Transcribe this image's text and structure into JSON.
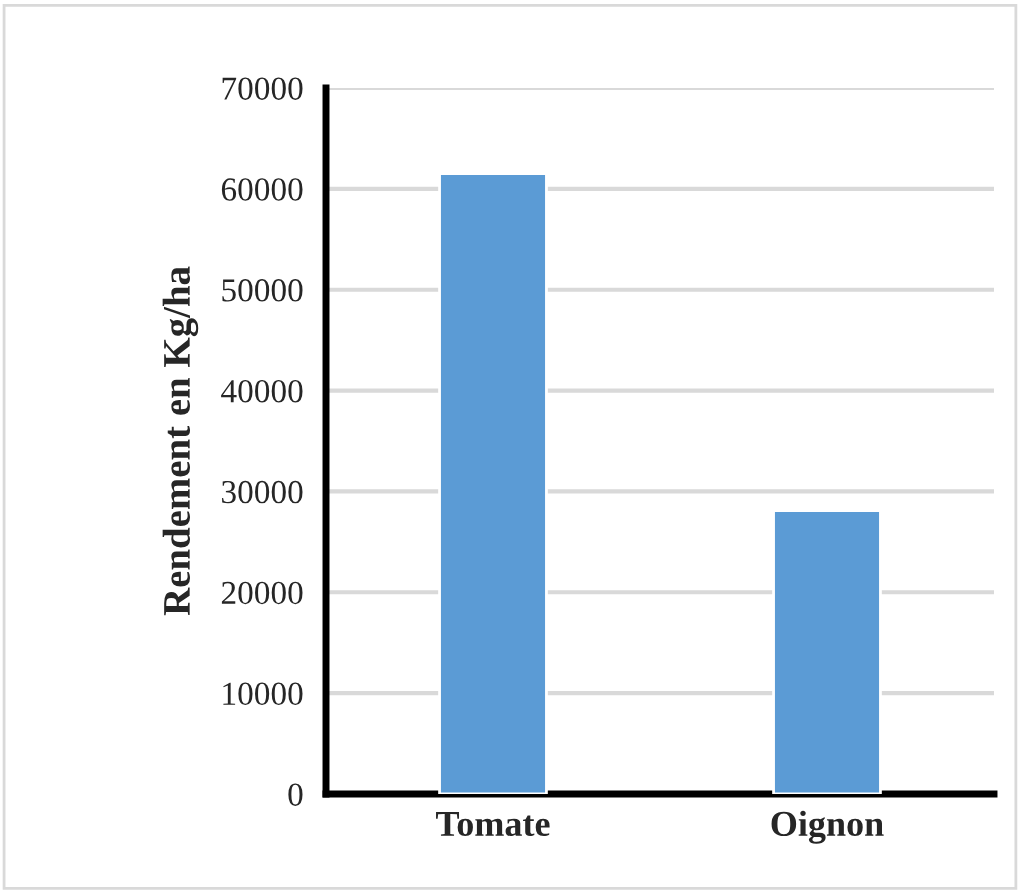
{
  "chart_data": {
    "type": "bar",
    "ylabel": "Rendement en Kg/ha",
    "categories": [
      "Tomate",
      "Oignon"
    ],
    "values": [
      61500,
      28100
    ],
    "color": "#5b9bd5",
    "ylim": [
      0,
      70000
    ],
    "yticks": [
      0,
      10000,
      20000,
      30000,
      40000,
      50000,
      60000,
      70000
    ],
    "grid": "y"
  }
}
